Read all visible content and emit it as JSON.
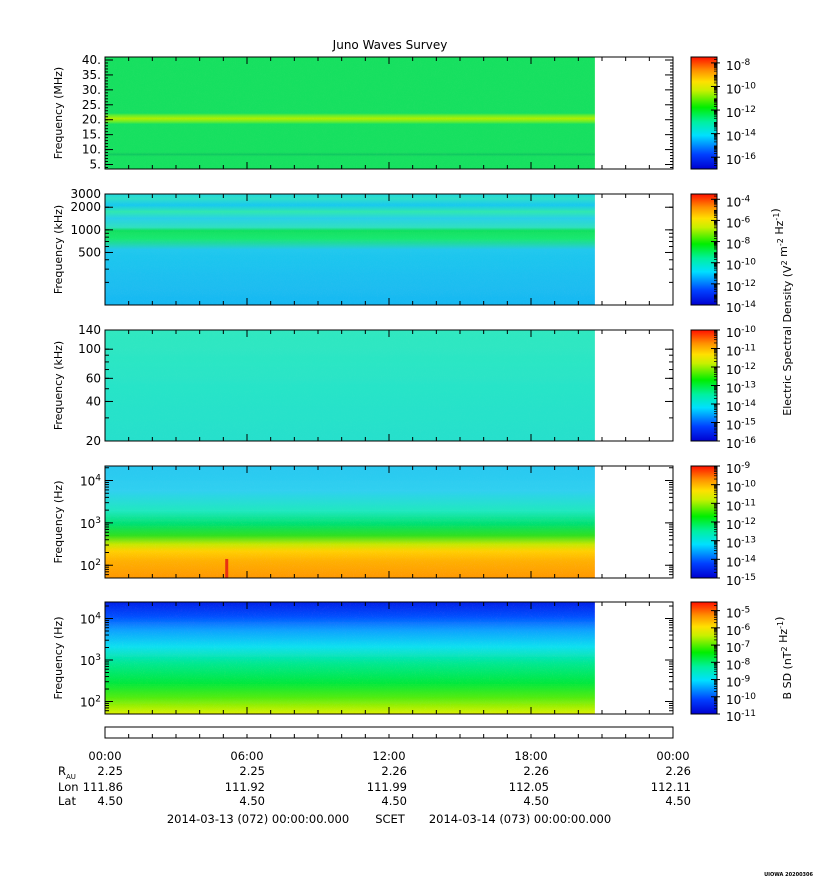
{
  "chart_data": {
    "type": "heatmap",
    "title": "Juno Waves Survey",
    "x_axis": {
      "tick_labels": [
        "00:00",
        "06:00",
        "12:00",
        "18:00",
        "00:00"
      ],
      "range_hours": [
        0,
        24
      ],
      "data_end_hours": 20.7,
      "ephemeris": [
        {
          "label": "R",
          "subscript": "AU",
          "values": [
            "2.25",
            "2.25",
            "2.26",
            "2.26",
            "2.26"
          ]
        },
        {
          "label": "Lon",
          "subscript": "",
          "values": [
            "111.86",
            "111.92",
            "111.99",
            "112.05",
            "112.11"
          ]
        },
        {
          "label": "Lat",
          "subscript": "",
          "values": [
            "4.50",
            "4.50",
            "4.50",
            "4.50",
            "4.50"
          ]
        }
      ],
      "start_label": "2014-03-13 (072) 00:00:00.000",
      "time_system": "SCET",
      "end_label": "2014-03-14 (073) 00:00:00.000"
    },
    "shared_colorbar_label": "Electric Spectral Density (V^2 m^-2 Hz^-1)",
    "panels": [
      {
        "ylabel": "Frequency (MHz)",
        "y_scale": "linear",
        "ylim": [
          3.5,
          41
        ],
        "y_ticks": [
          {
            "value": 40,
            "label": "40."
          },
          {
            "value": 35,
            "label": "35."
          },
          {
            "value": 30,
            "label": "30."
          },
          {
            "value": 25,
            "label": "25."
          },
          {
            "value": 20,
            "label": "20."
          },
          {
            "value": 15,
            "label": "15."
          },
          {
            "value": 10,
            "label": "10."
          },
          {
            "value": 5,
            "label": "5."
          }
        ],
        "colorbar": {
          "exp_min": -17,
          "exp_max": -7.5,
          "tick_exponents": [
            "-8",
            "-10",
            "-12",
            "-14",
            "-16"
          ],
          "label": ""
        },
        "description": "uniform green background with a bright band near 21 MHz and a darker band near 8 MHz"
      },
      {
        "ylabel": "Frequency (kHz)",
        "y_scale": "log",
        "ylim": [
          100,
          3000
        ],
        "y_ticks": [
          {
            "value": 3000,
            "label": "3000"
          },
          {
            "value": 2000,
            "label": "2000"
          },
          {
            "value": 1000,
            "label": "1000"
          },
          {
            "value": 500,
            "label": "500"
          }
        ],
        "colorbar": {
          "exp_min": -14,
          "exp_max": -3.5,
          "tick_exponents": [
            "-4",
            "-6",
            "-8",
            "-10",
            "-12",
            "-14"
          ],
          "label": ""
        },
        "description": "cyan background with green bands near 1000-1300 kHz and 2000-2500 kHz"
      },
      {
        "ylabel": "Frequency (kHz)",
        "y_scale": "log",
        "ylim": [
          20,
          140
        ],
        "y_ticks": [
          {
            "value": 140,
            "label": "140"
          },
          {
            "value": 100,
            "label": "100"
          },
          {
            "value": 60,
            "label": "60"
          },
          {
            "value": 40,
            "label": "40"
          },
          {
            "value": 20,
            "label": "20"
          }
        ],
        "colorbar": {
          "exp_min": -16,
          "exp_max": -10,
          "tick_exponents": [
            "-10",
            "-11",
            "-12",
            "-13",
            "-14",
            "-15",
            "-16"
          ],
          "label": "Electric Spectral Density (V^2 m^-2 Hz^-1)"
        },
        "description": "nearly uniform cyan-green"
      },
      {
        "ylabel": "Frequency (Hz)",
        "y_scale": "log",
        "ylim": [
          50,
          22000
        ],
        "y_ticks": [
          {
            "value": 10000,
            "base": "10",
            "exp": "4"
          },
          {
            "value": 1000,
            "base": "10",
            "exp": "3"
          },
          {
            "value": 100,
            "base": "10",
            "exp": "2"
          }
        ],
        "colorbar": {
          "exp_min": -15,
          "exp_max": -9,
          "tick_exponents": [
            "-9",
            "-10",
            "-11",
            "-12",
            "-13",
            "-14",
            "-15"
          ],
          "label": ""
        },
        "description": "intensity rises toward low frequency: cyan near 10^4 Hz, green near 10^3 Hz, orange below 200 Hz; brief red spike near 05:05"
      },
      {
        "ylabel": "Frequency (Hz)",
        "y_scale": "log",
        "ylim": [
          50,
          25000
        ],
        "y_ticks": [
          {
            "value": 10000,
            "base": "10",
            "exp": "4"
          },
          {
            "value": 1000,
            "base": "10",
            "exp": "3"
          },
          {
            "value": 100,
            "base": "10",
            "exp": "2"
          }
        ],
        "colorbar": {
          "exp_min": -11,
          "exp_max": -4.5,
          "tick_exponents": [
            "-5",
            "-6",
            "-7",
            "-8",
            "-9",
            "-10",
            "-11"
          ],
          "label": "B SD (nT^2 Hz^-1)"
        },
        "description": "blue at high frequency near 10^4 Hz, cyan near 10^3 Hz, green-yellow below 200 Hz"
      }
    ]
  },
  "stamp": "UIOWA 20200306"
}
